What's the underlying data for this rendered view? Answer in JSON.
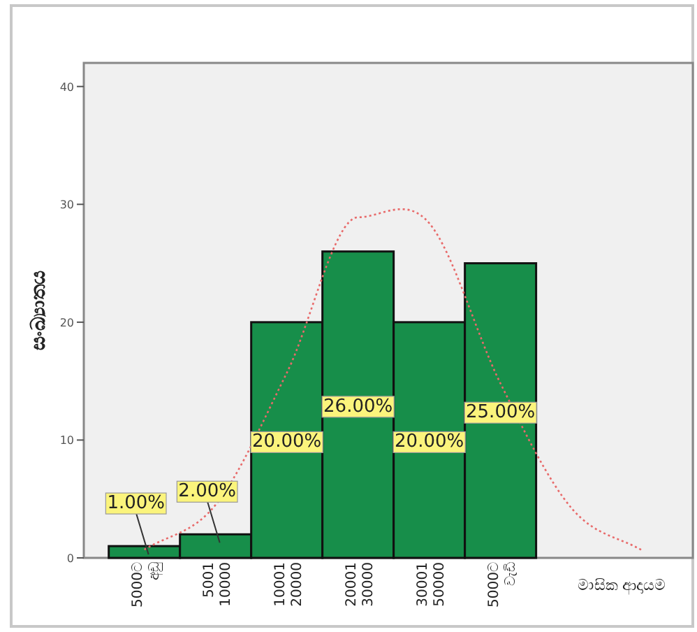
{
  "chart_data": {
    "type": "bar",
    "xlabel": "මාසික ආදායම",
    "ylabel": "සංඛ්‍යාතය",
    "categories": [
      "5000ට අඩු",
      "5001 10000",
      "10001 20000",
      "20001 30000",
      "30001 50000",
      "5000ට වැඩි",
      null,
      null
    ],
    "ylim": [
      0,
      42
    ],
    "yticks": [
      0,
      10,
      20,
      30,
      40
    ],
    "grid": false,
    "series": [
      {
        "color": "#178e4a",
        "values": [
          1,
          2,
          20,
          26,
          20,
          25,
          null,
          null
        ],
        "value_labels": [
          "1.00%",
          "2.00%",
          "20.00%",
          "26.00%",
          "20.00%",
          "25.00%",
          null,
          null
        ]
      },
      {
        "type": "line",
        "color": "#e86a6a",
        "line_style": "dotted",
        "values": [
          0.7,
          4.5,
          15.7,
          28.9,
          28.4,
          14.8,
          4.2,
          0.6
        ]
      }
    ]
  }
}
